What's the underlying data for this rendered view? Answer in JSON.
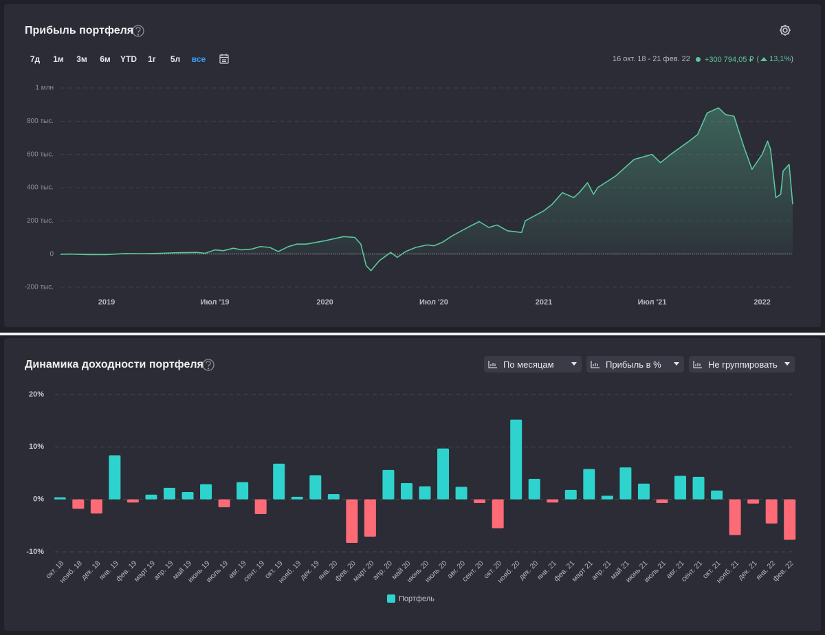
{
  "chart_data": [
    {
      "type": "line",
      "title": "Прибыль портфеля",
      "periods": [
        "7д",
        "1м",
        "3м",
        "6м",
        "YTD",
        "1г",
        "5л",
        "все"
      ],
      "active_period": "все",
      "date_range": "16 окт. 18 - 21 фев. 22",
      "profit": "+300 794,05 ₽",
      "profit_change": "13,1%",
      "color": "#5cc79b",
      "grid": true,
      "x": [
        "2018-10-16",
        "2018-11-01",
        "2018-12-01",
        "2019-01-01",
        "2019-02-01",
        "2019-03-01",
        "2019-04-01",
        "2019-05-01",
        "2019-06-01",
        "2019-06-15",
        "2019-07-01",
        "2019-07-15",
        "2019-08-01",
        "2019-08-15",
        "2019-09-01",
        "2019-09-15",
        "2019-10-01",
        "2019-10-15",
        "2019-11-01",
        "2019-11-15",
        "2019-12-01",
        "2020-01-01",
        "2020-02-01",
        "2020-02-20",
        "2020-03-01",
        "2020-03-10",
        "2020-03-18",
        "2020-04-01",
        "2020-04-20",
        "2020-05-01",
        "2020-05-15",
        "2020-06-01",
        "2020-06-20",
        "2020-07-01",
        "2020-07-15",
        "2020-08-01",
        "2020-09-01",
        "2020-09-15",
        "2020-10-01",
        "2020-10-15",
        "2020-11-01",
        "2020-11-25",
        "2020-12-01",
        "2021-01-01",
        "2021-01-15",
        "2021-02-01",
        "2021-02-20",
        "2021-03-01",
        "2021-03-15",
        "2021-03-25",
        "2021-04-01",
        "2021-05-01",
        "2021-06-01",
        "2021-07-01",
        "2021-07-15",
        "2021-08-01",
        "2021-09-01",
        "2021-09-15",
        "2021-10-01",
        "2021-10-20",
        "2021-11-01",
        "2021-11-15",
        "2021-12-01",
        "2021-12-15",
        "2022-01-01",
        "2022-01-10",
        "2022-01-15",
        "2022-01-24",
        "2022-02-01",
        "2022-02-05",
        "2022-02-15",
        "2022-02-21"
      ],
      "values": [
        -2000,
        0,
        -3000,
        -3000,
        3000,
        2000,
        5000,
        8000,
        10000,
        5000,
        25000,
        20000,
        35000,
        25000,
        30000,
        45000,
        40000,
        15000,
        45000,
        60000,
        60000,
        80000,
        105000,
        100000,
        60000,
        -70000,
        -100000,
        -40000,
        10000,
        -20000,
        15000,
        40000,
        55000,
        50000,
        70000,
        110000,
        170000,
        195000,
        160000,
        175000,
        140000,
        130000,
        200000,
        260000,
        300000,
        370000,
        340000,
        370000,
        430000,
        360000,
        400000,
        470000,
        570000,
        600000,
        550000,
        600000,
        680000,
        720000,
        850000,
        880000,
        840000,
        830000,
        650000,
        510000,
        600000,
        680000,
        630000,
        340000,
        360000,
        500000,
        540000,
        300000
      ],
      "xlim": [
        "2018-10-16",
        "2022-02-21"
      ],
      "xticks": [
        {
          "value": "2019-01-01",
          "label": "2019"
        },
        {
          "value": "2019-07-01",
          "label": "Июл '19"
        },
        {
          "value": "2020-01-01",
          "label": "2020"
        },
        {
          "value": "2020-07-01",
          "label": "Июл '20"
        },
        {
          "value": "2021-01-01",
          "label": "2021"
        },
        {
          "value": "2021-07-01",
          "label": "Июл '21"
        },
        {
          "value": "2022-01-01",
          "label": "2022"
        }
      ],
      "ylim": [
        -200000,
        1000000
      ],
      "yticks": [
        {
          "value": -200000,
          "label": "-200 тыс."
        },
        0,
        {
          "value": 200000,
          "label": "200 тыс."
        },
        {
          "value": 400000,
          "label": "400 тыс."
        },
        {
          "value": 600000,
          "label": "600 тыс."
        },
        {
          "value": 800000,
          "label": "800 тыс."
        },
        {
          "value": 1000000,
          "label": "1 млн"
        }
      ]
    },
    {
      "type": "bar",
      "title": "Динамика доходности портфеля",
      "controls": [
        "По месяцам",
        "Прибыль в %",
        "Не группировать"
      ],
      "categories": [
        "окт. 18",
        "нояб. 18",
        "дек. 18",
        "янв. 19",
        "фев. 19",
        "март 19",
        "апр. 19",
        "май 19",
        "июнь 19",
        "июль 19",
        "авг. 19",
        "сент. 19",
        "окт. 19",
        "нояб. 19",
        "дек. 19",
        "янв. 20",
        "фев. 20",
        "март 20",
        "апр. 20",
        "май 20",
        "июнь 20",
        "июль 20",
        "авг. 20",
        "сент. 20",
        "окт. 20",
        "нояб. 20",
        "дек. 20",
        "янв. 21",
        "фев. 21",
        "март 21",
        "апр. 21",
        "май 21",
        "июнь 21",
        "июль 21",
        "авг. 21",
        "сент. 21",
        "окт. 21",
        "нояб. 21",
        "дек. 21",
        "янв. 22",
        "фев. 22"
      ],
      "series": [
        {
          "name": "Портфель",
          "color": "#2ed3cd",
          "negative_color": "#fd6b77",
          "values": [
            0.4,
            -1.8,
            -2.7,
            8.4,
            -0.6,
            0.9,
            2.2,
            1.4,
            2.9,
            -1.5,
            3.3,
            -2.8,
            6.8,
            0.5,
            4.6,
            1.0,
            -8.3,
            -7.1,
            5.6,
            3.1,
            2.5,
            9.7,
            2.4,
            -0.7,
            -5.5,
            15.2,
            3.9,
            -0.6,
            1.8,
            5.8,
            0.7,
            6.1,
            3.0,
            -0.7,
            4.5,
            4.3,
            1.7,
            -6.8,
            -0.8,
            -4.6,
            -7.7
          ]
        }
      ],
      "legend": "bottom",
      "grid": true,
      "ylim": [
        -10,
        20
      ],
      "yticks": [
        {
          "value": -10,
          "label": "-10%"
        },
        {
          "value": 0,
          "label": "0%"
        },
        {
          "value": 10,
          "label": "10%"
        },
        {
          "value": 20,
          "label": "20%"
        }
      ]
    }
  ]
}
